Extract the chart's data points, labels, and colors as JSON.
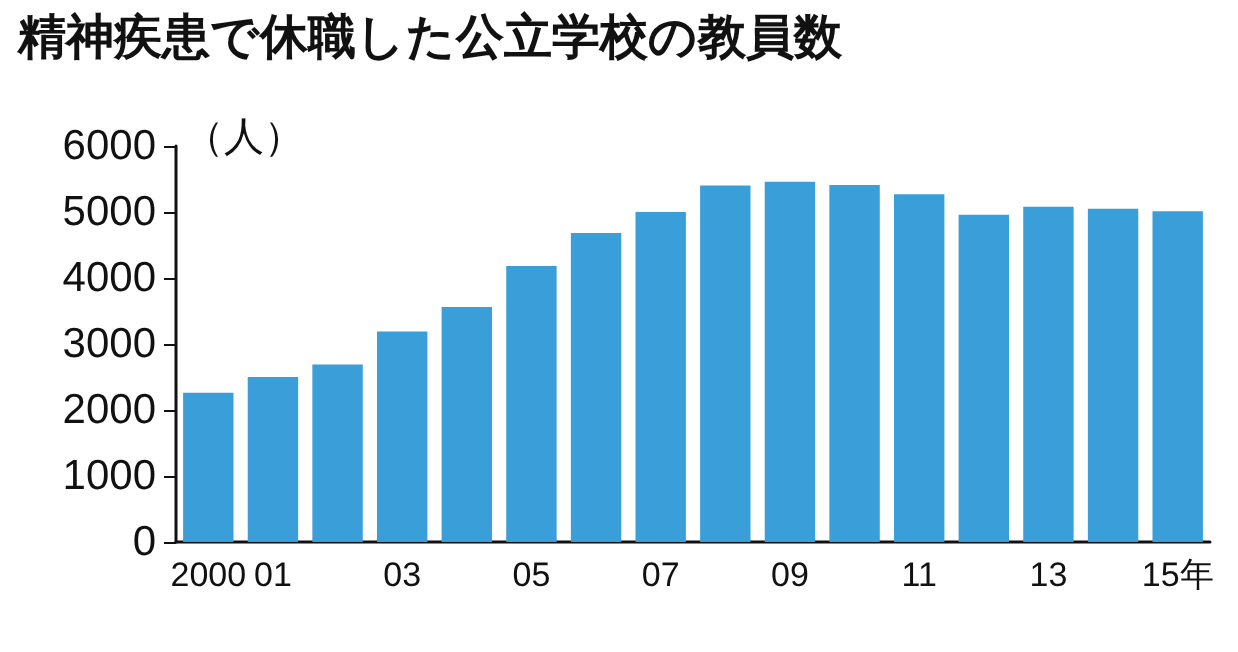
{
  "chart_data": {
    "type": "bar",
    "title": "精神疾患で休職した公立学校の教員数",
    "ylabel": "（人）",
    "categories": [
      "2000",
      "01",
      null,
      "03",
      null,
      "05",
      null,
      "07",
      null,
      "09",
      null,
      "11",
      null,
      "13",
      null,
      "15年"
    ],
    "values": [
      2260,
      2500,
      2690,
      3190,
      3560,
      4180,
      4680,
      5000,
      5400,
      5460,
      5410,
      5270,
      4960,
      5080,
      5050,
      5010
    ],
    "color": "#3a9ed8",
    "ylim": [
      0,
      6000
    ],
    "yticks": [
      0,
      1000,
      2000,
      3000,
      4000,
      5000,
      6000
    ],
    "grid": false
  }
}
